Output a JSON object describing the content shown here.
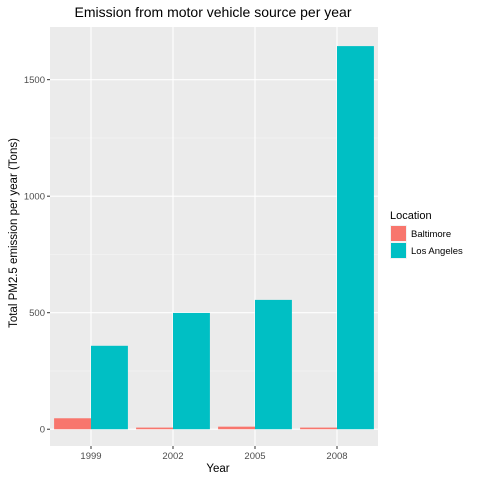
{
  "chart_data": {
    "type": "bar",
    "title": "Emission from motor vehicle source per year",
    "xlabel": "Year",
    "ylabel": "Total PM2.5 emission per year (Tons)",
    "categories": [
      "1999",
      "2002",
      "2005",
      "2008"
    ],
    "series": [
      {
        "name": "Baltimore",
        "color": "#F8766D",
        "values": [
          47,
          7,
          11,
          7
        ]
      },
      {
        "name": "Los Angeles",
        "color": "#00BFC4",
        "values": [
          358,
          499,
          555,
          1644
        ]
      }
    ],
    "ylim": [
      -72,
      1726
    ],
    "yticks": [
      0,
      500,
      1000,
      1500
    ],
    "ytick_labels": [
      "0",
      "500",
      "1000",
      "1500"
    ],
    "grid": true,
    "panel_background": "#EBEBEB",
    "legend": {
      "title": "Location",
      "position": "right"
    }
  }
}
